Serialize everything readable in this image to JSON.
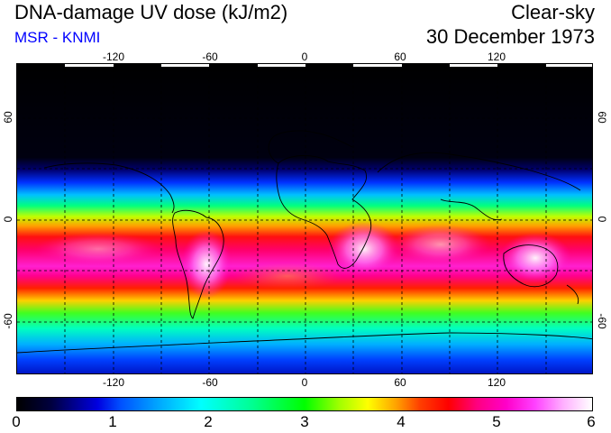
{
  "header": {
    "title": "DNA-damage UV dose (kJ/m2)",
    "source": "MSR - KNMI",
    "condition": "Clear-sky",
    "date": "30 December 1973"
  },
  "map": {
    "lon_ticks": [
      "-120",
      "-60",
      "0",
      "60",
      "120"
    ],
    "lat_ticks": [
      "60",
      "0",
      "-60"
    ],
    "lon_range": [
      -180,
      180
    ],
    "lat_range": [
      -90,
      90
    ],
    "grid": true
  },
  "colorbar": {
    "labels": [
      "0",
      "1",
      "2",
      "3",
      "4",
      "5",
      "6"
    ],
    "range": [
      0,
      6
    ]
  },
  "colors": {
    "source_text": "#0000ff",
    "low": "#000000",
    "high": "#ffffff"
  }
}
